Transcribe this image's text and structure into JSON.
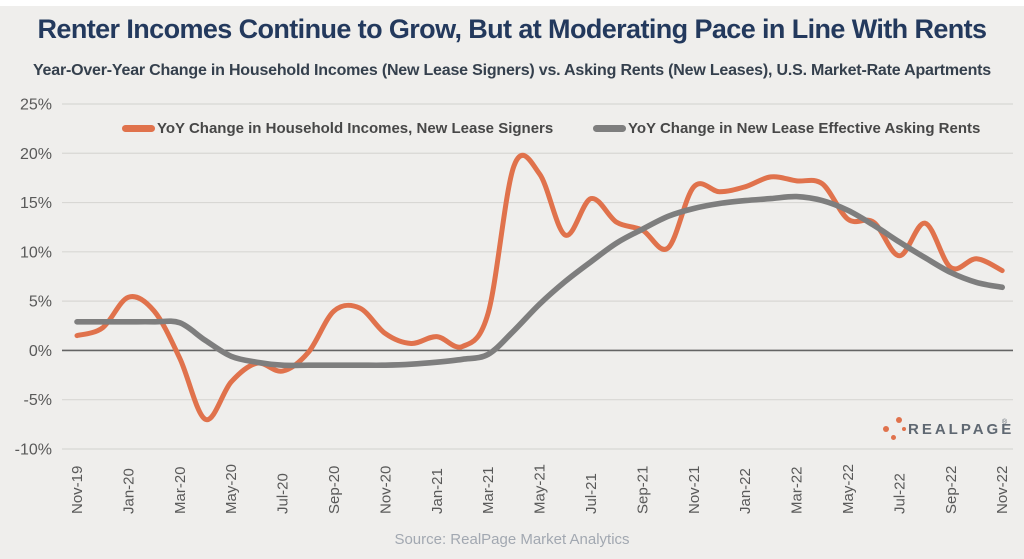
{
  "page": {
    "title": "Renter Incomes Continue to Grow, But at Moderating Pace in Line With Rents",
    "subtitle": "Year-Over-Year Change in Household Incomes (New Lease Signers) vs. Asking Rents (New Leases), U.S. Market-Rate Apartments",
    "source": "Source: RealPage Market Analytics"
  },
  "legend": {
    "items": [
      {
        "label": "YoY Change in Household Incomes, New Lease Signers",
        "color": "#e0724c"
      },
      {
        "label": "YoY Change in New Lease Effective Asking Rents",
        "color": "#7e7e7e"
      }
    ]
  },
  "logo": {
    "text": "REALPAGE",
    "registered": "®",
    "dot_color": "#e0724c",
    "text_color": "#5f6872"
  },
  "colors": {
    "panel_background": "#efeeec",
    "title": "#23395d",
    "gridline": "#d8d7d4",
    "zero_line": "#646464",
    "tick_label": "#595959"
  },
  "chart_data": {
    "type": "line",
    "x": [
      "Nov-19",
      "Dec-19",
      "Jan-20",
      "Feb-20",
      "Mar-20",
      "Apr-20",
      "May-20",
      "Jun-20",
      "Jul-20",
      "Aug-20",
      "Sep-20",
      "Oct-20",
      "Nov-20",
      "Dec-20",
      "Jan-21",
      "Feb-21",
      "Mar-21",
      "Apr-21",
      "May-21",
      "Jun-21",
      "Jul-21",
      "Aug-21",
      "Sep-21",
      "Oct-21",
      "Nov-21",
      "Dec-21",
      "Jan-22",
      "Feb-22",
      "Mar-22",
      "Apr-22",
      "May-22",
      "Jun-22",
      "Jul-22",
      "Aug-22",
      "Sep-22",
      "Oct-22",
      "Nov-22"
    ],
    "x_tick_labels": [
      "Nov-19",
      "Jan-20",
      "Mar-20",
      "May-20",
      "Jul-20",
      "Sep-20",
      "Nov-20",
      "Jan-21",
      "Mar-21",
      "May-21",
      "Jul-21",
      "Sep-21",
      "Nov-21",
      "Jan-22",
      "Mar-22",
      "May-22",
      "Jul-22",
      "Sep-22",
      "Nov-22"
    ],
    "series": [
      {
        "name": "YoY Change in Household Incomes, New Lease Signers",
        "color": "#e0724c",
        "values": [
          1.5,
          2.3,
          5.4,
          4.0,
          -0.8,
          -7.0,
          -3.2,
          -1.3,
          -2.1,
          -0.2,
          4.0,
          4.3,
          1.7,
          0.7,
          1.4,
          0.4,
          3.8,
          18.7,
          17.9,
          11.7,
          15.4,
          13.0,
          12.2,
          10.4,
          16.6,
          16.1,
          16.6,
          17.6,
          17.2,
          16.9,
          13.3,
          13.0,
          9.6,
          12.9,
          8.4,
          9.3,
          8.1
        ]
      },
      {
        "name": "YoY Change in New Lease Effective Asking Rents",
        "color": "#7e7e7e",
        "values": [
          2.9,
          2.9,
          2.9,
          2.9,
          2.8,
          1.0,
          -0.6,
          -1.2,
          -1.5,
          -1.5,
          -1.5,
          -1.5,
          -1.5,
          -1.4,
          -1.2,
          -0.9,
          -0.4,
          2.0,
          4.7,
          7.0,
          9.0,
          10.9,
          12.3,
          13.6,
          14.4,
          14.9,
          15.2,
          15.4,
          15.6,
          15.2,
          14.2,
          12.7,
          11.0,
          9.4,
          7.9,
          6.9,
          6.4
        ]
      }
    ],
    "ylim": [
      -10,
      25
    ],
    "ytick_values": [
      25,
      20,
      15,
      10,
      5,
      0,
      -5,
      -10
    ],
    "ytick_labels": [
      "25%",
      "20%",
      "15%",
      "10%",
      "5%",
      "0%",
      "-5%",
      "-10%"
    ],
    "grid": true,
    "legend_position": "top"
  }
}
